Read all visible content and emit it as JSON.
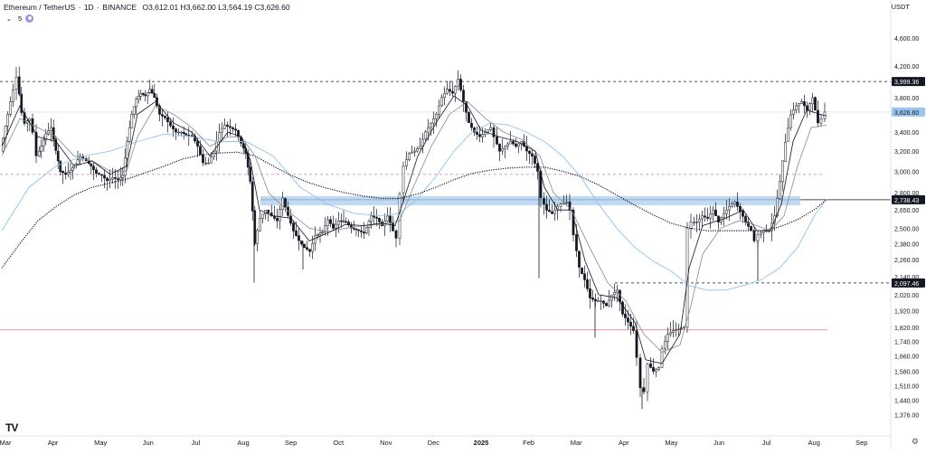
{
  "header": {
    "symbol": "Ethereum / TetherUS",
    "interval": "1D",
    "exchange": "BINANCE",
    "open_label": "O",
    "open": "3,612.01",
    "high_label": "H",
    "high": "3,662.00",
    "low_label": "L",
    "low": "3,564.19",
    "close_label": "C",
    "close": "3,626.60",
    "separator": "·"
  },
  "indicator": {
    "length": "5",
    "chevron_icon": "chevron-down-icon",
    "status_icon": "circle-icon"
  },
  "currency": "USDT",
  "logo": "TV",
  "settings_icon": "gear-icon",
  "colors": {
    "candle": "#131722",
    "ma_fast": "#131722",
    "ma_mid": "#8a8a8a",
    "ma_slow": "#90c2ef",
    "ma_long": "#131722",
    "zone": "#a9cdee",
    "hline_dashed": "#131722",
    "hline_pink": "#d98cc0",
    "hline_red": "#e57373",
    "price_tag": "#9cc4f0"
  },
  "chart_data": {
    "type": "candlestick",
    "y_scale": "log",
    "ylim": [
      1300,
      4900
    ],
    "yticks": [
      "4,600.00",
      "4,200.00",
      "3,800.00",
      "3,400.00",
      "3,200.00",
      "3,000.00",
      "2,800.00",
      "2,650.00",
      "2,500.00",
      "2,380.00",
      "2,260.00",
      "2,140.00",
      "2,020.00",
      "1,920.00",
      "1,820.00",
      "1,740.00",
      "1,660.00",
      "1,580.00",
      "1,510.00",
      "1,440.00",
      "1,376.00"
    ],
    "xlabels": [
      "Mar",
      "Apr",
      "May",
      "Jun",
      "Jul",
      "Aug",
      "Sep",
      "Oct",
      "Nov",
      "Dec",
      "2025",
      "Feb",
      "Mar",
      "Apr",
      "May",
      "Jun",
      "Jul",
      "Aug",
      "Sep"
    ],
    "price_levels": [
      {
        "label": "3,999.36",
        "value": 3999.36,
        "style": "dashed-black"
      },
      {
        "label": "3,626.60",
        "value": 3626.6,
        "style": "last-price"
      },
      {
        "label": "2,738.43",
        "value": 2738.43,
        "style": "solid-black"
      },
      {
        "label": "2,097.46",
        "value": 2097.46,
        "style": "dashed-black"
      }
    ],
    "extra_levels": [
      {
        "value": 2970,
        "style": "dashed-pink"
      },
      {
        "value": 1805,
        "style": "solid-red"
      }
    ],
    "zone": {
      "low": 2690,
      "high": 2770
    },
    "path_points": [
      [
        0,
        3200
      ],
      [
        8,
        3600
      ],
      [
        14,
        3900
      ],
      [
        18,
        4060
      ],
      [
        23,
        3620
      ],
      [
        27,
        3500
      ],
      [
        32,
        3550
      ],
      [
        36,
        3400
      ],
      [
        40,
        3150
      ],
      [
        45,
        3250
      ],
      [
        50,
        3380
      ],
      [
        56,
        3450
      ],
      [
        61,
        3200
      ],
      [
        66,
        3000
      ],
      [
        72,
        2970
      ],
      [
        80,
        3030
      ],
      [
        88,
        3150
      ],
      [
        95,
        3100
      ],
      [
        100,
        3050
      ],
      [
        106,
        2980
      ],
      [
        112,
        2960
      ],
      [
        118,
        2910
      ],
      [
        124,
        2940
      ],
      [
        130,
        2920
      ],
      [
        135,
        2960
      ],
      [
        140,
        3300
      ],
      [
        145,
        3600
      ],
      [
        150,
        3780
      ],
      [
        155,
        3850
      ],
      [
        160,
        3820
      ],
      [
        165,
        3900
      ],
      [
        170,
        3800
      ],
      [
        176,
        3600
      ],
      [
        182,
        3560
      ],
      [
        188,
        3470
      ],
      [
        194,
        3400
      ],
      [
        200,
        3400
      ],
      [
        205,
        3370
      ],
      [
        212,
        3360
      ],
      [
        218,
        3250
      ],
      [
        224,
        3080
      ],
      [
        230,
        3080
      ],
      [
        236,
        3200
      ],
      [
        242,
        3400
      ],
      [
        248,
        3480
      ],
      [
        254,
        3450
      ],
      [
        260,
        3420
      ],
      [
        266,
        3280
      ],
      [
        271,
        3180
      ],
      [
        276,
        2900
      ],
      [
        281,
        2380
      ],
      [
        287,
        2580
      ],
      [
        293,
        2650
      ],
      [
        300,
        2600
      ],
      [
        306,
        2560
      ],
      [
        312,
        2750
      ],
      [
        318,
        2600
      ],
      [
        324,
        2480
      ],
      [
        330,
        2400
      ],
      [
        336,
        2350
      ],
      [
        342,
        2320
      ],
      [
        348,
        2440
      ],
      [
        356,
        2470
      ],
      [
        362,
        2570
      ],
      [
        368,
        2500
      ],
      [
        374,
        2560
      ],
      [
        382,
        2550
      ],
      [
        388,
        2500
      ],
      [
        396,
        2480
      ],
      [
        402,
        2460
      ],
      [
        410,
        2600
      ],
      [
        416,
        2580
      ],
      [
        422,
        2520
      ],
      [
        428,
        2600
      ],
      [
        434,
        2480
      ],
      [
        438,
        2420
      ],
      [
        442,
        2800
      ],
      [
        446,
        3050
      ],
      [
        452,
        3180
      ],
      [
        458,
        3200
      ],
      [
        464,
        3250
      ],
      [
        470,
        3400
      ],
      [
        476,
        3500
      ],
      [
        482,
        3600
      ],
      [
        488,
        3800
      ],
      [
        494,
        3900
      ],
      [
        500,
        3850
      ],
      [
        506,
        4030
      ],
      [
        512,
        3750
      ],
      [
        518,
        3500
      ],
      [
        524,
        3400
      ],
      [
        530,
        3350
      ],
      [
        536,
        3400
      ],
      [
        542,
        3450
      ],
      [
        546,
        3350
      ],
      [
        552,
        3200
      ],
      [
        558,
        3250
      ],
      [
        564,
        3300
      ],
      [
        570,
        3250
      ],
      [
        576,
        3300
      ],
      [
        582,
        3200
      ],
      [
        588,
        3150
      ],
      [
        594,
        3000
      ],
      [
        598,
        2750
      ],
      [
        604,
        2650
      ],
      [
        610,
        2620
      ],
      [
        616,
        2680
      ],
      [
        620,
        2700
      ],
      [
        626,
        2720
      ],
      [
        630,
        2650
      ],
      [
        634,
        2450
      ],
      [
        640,
        2200
      ],
      [
        646,
        2120
      ],
      [
        652,
        2000
      ],
      [
        658,
        1980
      ],
      [
        664,
        1980
      ],
      [
        670,
        1950
      ],
      [
        676,
        2020
      ],
      [
        682,
        2050
      ],
      [
        688,
        1900
      ],
      [
        694,
        1850
      ],
      [
        700,
        1800
      ],
      [
        704,
        1650
      ],
      [
        708,
        1500
      ],
      [
        712,
        1480
      ],
      [
        716,
        1620
      ],
      [
        722,
        1580
      ],
      [
        728,
        1600
      ],
      [
        732,
        1700
      ],
      [
        738,
        1780
      ],
      [
        744,
        1800
      ],
      [
        750,
        1810
      ],
      [
        756,
        1820
      ],
      [
        760,
        2500
      ],
      [
        764,
        2550
      ],
      [
        770,
        2550
      ],
      [
        776,
        2600
      ],
      [
        782,
        2580
      ],
      [
        788,
        2650
      ],
      [
        794,
        2550
      ],
      [
        800,
        2620
      ],
      [
        806,
        2680
      ],
      [
        812,
        2720
      ],
      [
        818,
        2640
      ],
      [
        824,
        2550
      ],
      [
        830,
        2480
      ],
      [
        834,
        2400
      ],
      [
        838,
        2450
      ],
      [
        844,
        2480
      ],
      [
        850,
        2480
      ],
      [
        856,
        2600
      ],
      [
        862,
        2900
      ],
      [
        868,
        3300
      ],
      [
        874,
        3600
      ],
      [
        880,
        3700
      ],
      [
        886,
        3750
      ],
      [
        892,
        3650
      ],
      [
        898,
        3800
      ],
      [
        904,
        3500
      ],
      [
        908,
        3550
      ],
      [
        912,
        3626
      ]
    ],
    "wicks": [
      {
        "x": 279,
        "low": 2100
      },
      {
        "x": 333,
        "low": 2190
      },
      {
        "x": 594,
        "low": 2130
      },
      {
        "x": 656,
        "low": 1760
      },
      {
        "x": 708,
        "low": 1400
      },
      {
        "x": 836,
        "low": 2110
      }
    ],
    "ma_points": {
      "ma_fast": [
        [
          0,
          3250
        ],
        [
          20,
          3700
        ],
        [
          40,
          3350
        ],
        [
          60,
          3300
        ],
        [
          80,
          3050
        ],
        [
          100,
          3100
        ],
        [
          120,
          2970
        ],
        [
          138,
          3050
        ],
        [
          150,
          3600
        ],
        [
          170,
          3750
        ],
        [
          190,
          3500
        ],
        [
          210,
          3400
        ],
        [
          230,
          3150
        ],
        [
          250,
          3400
        ],
        [
          265,
          3350
        ],
        [
          275,
          3100
        ],
        [
          285,
          2650
        ],
        [
          300,
          2600
        ],
        [
          320,
          2580
        ],
        [
          340,
          2400
        ],
        [
          360,
          2460
        ],
        [
          380,
          2530
        ],
        [
          400,
          2520
        ],
        [
          420,
          2540
        ],
        [
          435,
          2520
        ],
        [
          445,
          2750
        ],
        [
          460,
          3150
        ],
        [
          480,
          3500
        ],
        [
          500,
          3820
        ],
        [
          515,
          3700
        ],
        [
          530,
          3420
        ],
        [
          550,
          3350
        ],
        [
          570,
          3300
        ],
        [
          590,
          3200
        ],
        [
          600,
          2850
        ],
        [
          615,
          2650
        ],
        [
          630,
          2650
        ],
        [
          645,
          2250
        ],
        [
          660,
          2020
        ],
        [
          680,
          2000
        ],
        [
          700,
          1850
        ],
        [
          712,
          1640
        ],
        [
          730,
          1620
        ],
        [
          750,
          1780
        ],
        [
          760,
          2200
        ],
        [
          775,
          2520
        ],
        [
          800,
          2580
        ],
        [
          820,
          2650
        ],
        [
          835,
          2480
        ],
        [
          850,
          2480
        ],
        [
          862,
          2700
        ],
        [
          875,
          3300
        ],
        [
          890,
          3650
        ],
        [
          905,
          3600
        ],
        [
          912,
          3580
        ]
      ],
      "ma_mid": [
        [
          0,
          3150
        ],
        [
          20,
          3550
        ],
        [
          40,
          3450
        ],
        [
          60,
          3350
        ],
        [
          80,
          3150
        ],
        [
          100,
          3100
        ],
        [
          120,
          3000
        ],
        [
          138,
          3000
        ],
        [
          150,
          3350
        ],
        [
          170,
          3700
        ],
        [
          190,
          3600
        ],
        [
          210,
          3450
        ],
        [
          230,
          3250
        ],
        [
          250,
          3350
        ],
        [
          265,
          3350
        ],
        [
          280,
          3150
        ],
        [
          295,
          2800
        ],
        [
          315,
          2650
        ],
        [
          340,
          2500
        ],
        [
          360,
          2470
        ],
        [
          380,
          2500
        ],
        [
          400,
          2520
        ],
        [
          420,
          2530
        ],
        [
          440,
          2560
        ],
        [
          455,
          2850
        ],
        [
          475,
          3250
        ],
        [
          495,
          3600
        ],
        [
          515,
          3750
        ],
        [
          535,
          3550
        ],
        [
          555,
          3400
        ],
        [
          575,
          3320
        ],
        [
          595,
          3150
        ],
        [
          610,
          2800
        ],
        [
          630,
          2650
        ],
        [
          650,
          2350
        ],
        [
          670,
          2100
        ],
        [
          690,
          1980
        ],
        [
          710,
          1780
        ],
        [
          730,
          1680
        ],
        [
          750,
          1720
        ],
        [
          762,
          1950
        ],
        [
          775,
          2300
        ],
        [
          795,
          2500
        ],
        [
          815,
          2560
        ],
        [
          835,
          2520
        ],
        [
          850,
          2480
        ],
        [
          865,
          2600
        ],
        [
          880,
          3050
        ],
        [
          895,
          3450
        ],
        [
          912,
          3480
        ]
      ],
      "ma_slow": [
        [
          0,
          2480
        ],
        [
          30,
          2850
        ],
        [
          60,
          3050
        ],
        [
          90,
          3150
        ],
        [
          120,
          3200
        ],
        [
          150,
          3300
        ],
        [
          180,
          3380
        ],
        [
          210,
          3350
        ],
        [
          240,
          3300
        ],
        [
          270,
          3300
        ],
        [
          300,
          3150
        ],
        [
          330,
          2850
        ],
        [
          360,
          2700
        ],
        [
          390,
          2620
        ],
        [
          420,
          2600
        ],
        [
          440,
          2620
        ],
        [
          460,
          2750
        ],
        [
          480,
          2950
        ],
        [
          500,
          3200
        ],
        [
          520,
          3400
        ],
        [
          540,
          3500
        ],
        [
          560,
          3480
        ],
        [
          580,
          3400
        ],
        [
          600,
          3300
        ],
        [
          620,
          3150
        ],
        [
          640,
          2950
        ],
        [
          660,
          2700
        ],
        [
          680,
          2500
        ],
        [
          700,
          2350
        ],
        [
          720,
          2250
        ],
        [
          740,
          2180
        ],
        [
          760,
          2080
        ],
        [
          780,
          2050
        ],
        [
          800,
          2050
        ],
        [
          820,
          2080
        ],
        [
          840,
          2120
        ],
        [
          860,
          2200
        ],
        [
          880,
          2350
        ],
        [
          900,
          2620
        ],
        [
          912,
          2740
        ]
      ],
      "ma_long": [
        [
          0,
          2200
        ],
        [
          20,
          2380
        ],
        [
          40,
          2560
        ],
        [
          60,
          2680
        ],
        [
          80,
          2780
        ],
        [
          100,
          2850
        ],
        [
          120,
          2890
        ],
        [
          140,
          2930
        ],
        [
          160,
          2990
        ],
        [
          180,
          3050
        ],
        [
          200,
          3120
        ],
        [
          220,
          3160
        ],
        [
          240,
          3180
        ],
        [
          260,
          3190
        ],
        [
          280,
          3150
        ],
        [
          300,
          3050
        ],
        [
          320,
          2960
        ],
        [
          340,
          2890
        ],
        [
          360,
          2840
        ],
        [
          380,
          2800
        ],
        [
          400,
          2770
        ],
        [
          420,
          2750
        ],
        [
          440,
          2750
        ],
        [
          460,
          2790
        ],
        [
          480,
          2850
        ],
        [
          500,
          2920
        ],
        [
          520,
          2980
        ],
        [
          540,
          3010
        ],
        [
          560,
          3030
        ],
        [
          580,
          3040
        ],
        [
          600,
          3040
        ],
        [
          620,
          3000
        ],
        [
          640,
          2950
        ],
        [
          660,
          2870
        ],
        [
          680,
          2780
        ],
        [
          700,
          2690
        ],
        [
          720,
          2610
        ],
        [
          740,
          2540
        ],
        [
          760,
          2500
        ],
        [
          780,
          2480
        ],
        [
          800,
          2480
        ],
        [
          820,
          2480
        ],
        [
          840,
          2480
        ],
        [
          860,
          2510
        ],
        [
          880,
          2570
        ],
        [
          900,
          2660
        ],
        [
          912,
          2740
        ]
      ]
    }
  }
}
